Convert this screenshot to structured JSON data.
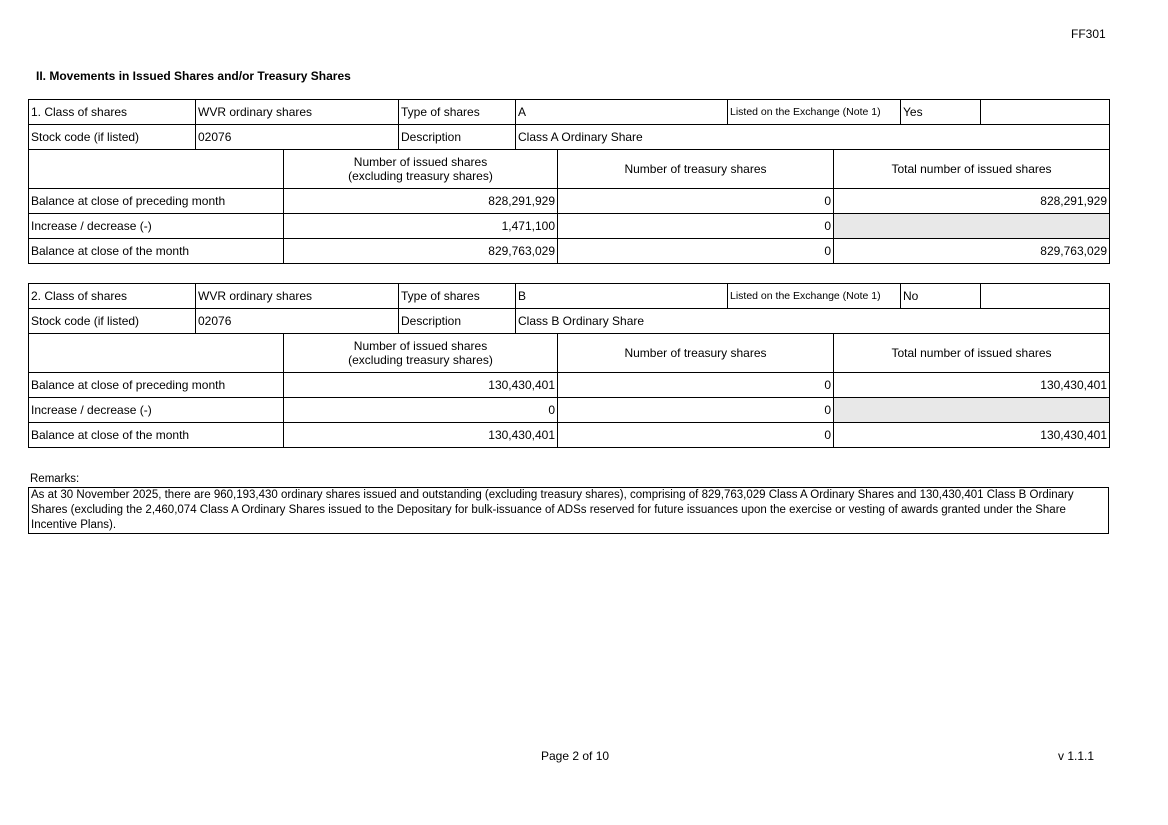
{
  "form_code": "FF301",
  "section_title": "II. Movements in Issued Shares and/or Treasury Shares",
  "labels": {
    "type_of_shares": "Type of shares",
    "listed": "Listed on the Exchange (Note 1)",
    "stock_code": "Stock code (if listed)",
    "description": "Description",
    "col_issued": "Number of issued shares",
    "col_issued_sub": "(excluding treasury shares)",
    "col_treasury": "Number of treasury shares",
    "col_total": "Total number of issued shares",
    "row_preceding": "Balance at close of preceding month",
    "row_change": "Increase / decrease (-)",
    "row_close": "Balance at close of the month"
  },
  "classes": [
    {
      "class_label": "1. Class of shares",
      "class_value": "WVR ordinary shares",
      "type": "A",
      "listed": "Yes",
      "stock_code": "02076",
      "description": "Class A Ordinary Share",
      "rows": [
        [
          "828,291,929",
          "0",
          "828,291,929"
        ],
        [
          "1,471,100",
          "0",
          ""
        ],
        [
          "829,763,029",
          "0",
          "829,763,029"
        ]
      ]
    },
    {
      "class_label": "2. Class of shares",
      "class_value": "WVR ordinary shares",
      "type": "B",
      "listed": "No",
      "stock_code": "02076",
      "description": "Class B Ordinary Share",
      "rows": [
        [
          "130,430,401",
          "0",
          "130,430,401"
        ],
        [
          "0",
          "0",
          ""
        ],
        [
          "130,430,401",
          "0",
          "130,430,401"
        ]
      ]
    }
  ],
  "remarks_label": "Remarks:",
  "remarks_text": "As at 30 November 2025, there are 960,193,430 ordinary shares issued and outstanding (excluding treasury shares), comprising of 829,763,029 Class A Ordinary Shares and 130,430,401 Class B Ordinary Shares (excluding the 2,460,074 Class A Ordinary Shares issued to the Depositary for bulk-issuance of ADSs reserved for future issuances upon the exercise or vesting of awards granted under the Share Incentive Plans).",
  "footer": {
    "page": "Page 2 of 10",
    "version": "v 1.1.1"
  }
}
